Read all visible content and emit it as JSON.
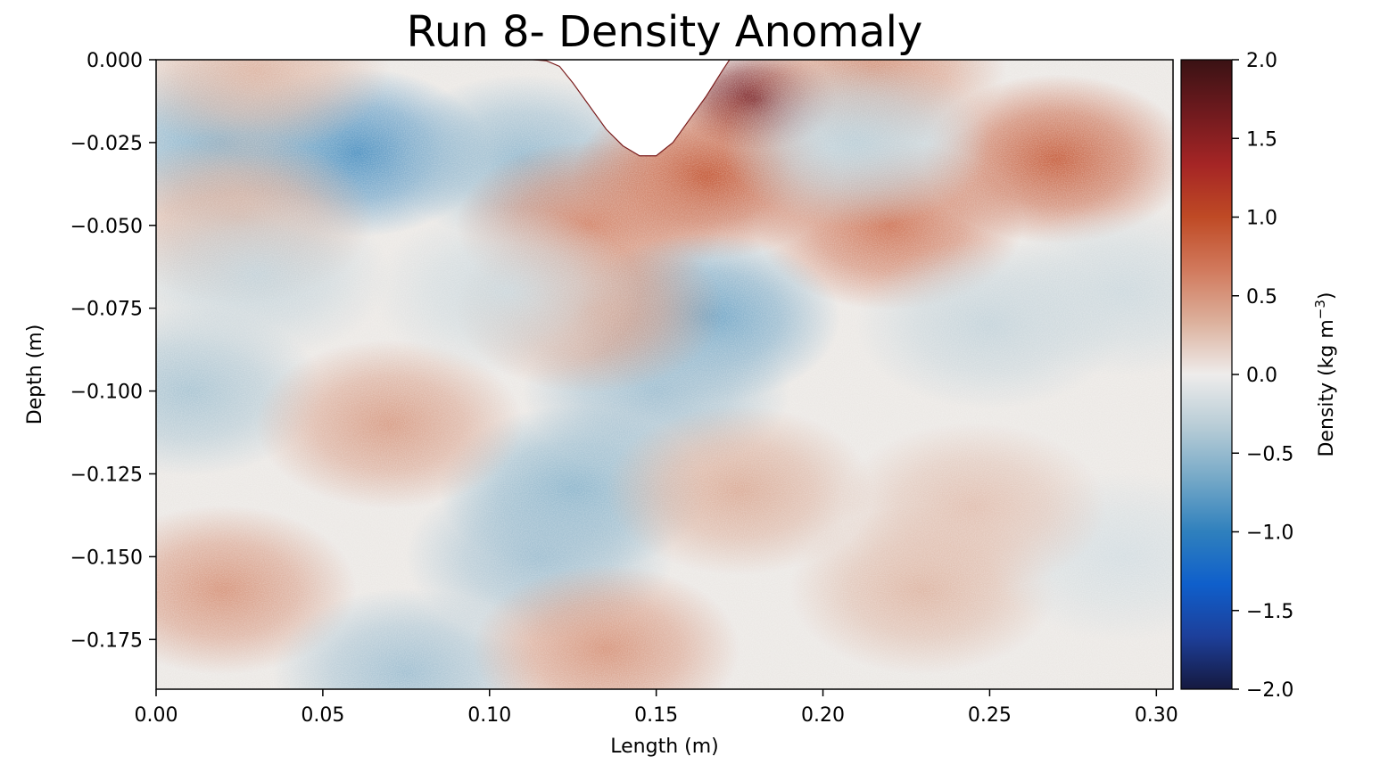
{
  "chart_data": {
    "type": "heatmap",
    "title": "Run 8- Density Anomaly",
    "xlabel": "Length (m)",
    "ylabel": "Depth (m)",
    "xlim": [
      0.0,
      0.305
    ],
    "ylim": [
      -0.19,
      0.0
    ],
    "x_ticks": [
      "0.00",
      "0.05",
      "0.10",
      "0.15",
      "0.20",
      "0.25",
      "0.30"
    ],
    "x_tick_values": [
      0.0,
      0.05,
      0.1,
      0.15,
      0.2,
      0.25,
      0.3
    ],
    "y_ticks": [
      "0.000",
      "−0.025",
      "−0.050",
      "−0.075",
      "−0.100",
      "−0.125",
      "−0.150",
      "−0.175"
    ],
    "y_tick_values": [
      0.0,
      -0.025,
      -0.05,
      -0.075,
      -0.1,
      -0.125,
      -0.15,
      -0.175
    ],
    "colorbar": {
      "label": "Density (kg m",
      "label_exponent": "−3",
      "label_close": ")",
      "range": [
        -2.0,
        2.0
      ],
      "ticks": [
        "2.0",
        "1.5",
        "1.0",
        "0.5",
        "0.0",
        "−0.5",
        "−1.0",
        "−1.5",
        "−2.0"
      ],
      "tick_values": [
        2.0,
        1.5,
        1.0,
        0.5,
        0.0,
        -0.5,
        -1.0,
        -1.5,
        -2.0
      ],
      "colormap": [
        "#15193f",
        "#1d3f9a",
        "#0f5fcb",
        "#2f80bd",
        "#74a8c7",
        "#b7ccd6",
        "#eeeceb",
        "#dcb09c",
        "#d1795c",
        "#bf4a25",
        "#a52525",
        "#6f1a1e",
        "#3a1214"
      ]
    },
    "field_features": [
      {
        "x": 0.06,
        "depth": -0.028,
        "value": -0.85
      },
      {
        "x": 0.02,
        "depth": -0.025,
        "value": -0.6
      },
      {
        "x": 0.11,
        "depth": -0.03,
        "value": -0.5
      },
      {
        "x": 0.18,
        "depth": -0.012,
        "value": 1.6
      },
      {
        "x": 0.165,
        "depth": -0.035,
        "value": 0.9
      },
      {
        "x": 0.13,
        "depth": -0.05,
        "value": 0.6
      },
      {
        "x": 0.22,
        "depth": -0.05,
        "value": 0.7
      },
      {
        "x": 0.27,
        "depth": -0.03,
        "value": 0.85
      },
      {
        "x": 0.215,
        "depth": -0.002,
        "value": 0.5
      },
      {
        "x": 0.03,
        "depth": -0.003,
        "value": 0.3
      },
      {
        "x": 0.025,
        "depth": -0.048,
        "value": 0.35
      },
      {
        "x": 0.21,
        "depth": -0.025,
        "value": -0.3
      },
      {
        "x": 0.165,
        "depth": -0.078,
        "value": -0.7
      },
      {
        "x": 0.15,
        "depth": -0.1,
        "value": -0.45
      },
      {
        "x": 0.125,
        "depth": -0.13,
        "value": -0.55
      },
      {
        "x": 0.115,
        "depth": -0.15,
        "value": -0.45
      },
      {
        "x": 0.01,
        "depth": -0.1,
        "value": -0.4
      },
      {
        "x": 0.03,
        "depth": -0.065,
        "value": -0.25
      },
      {
        "x": 0.07,
        "depth": -0.11,
        "value": 0.45
      },
      {
        "x": 0.13,
        "depth": -0.075,
        "value": 0.45
      },
      {
        "x": 0.02,
        "depth": -0.16,
        "value": 0.5
      },
      {
        "x": 0.075,
        "depth": -0.185,
        "value": -0.45
      },
      {
        "x": 0.135,
        "depth": -0.178,
        "value": 0.5
      },
      {
        "x": 0.175,
        "depth": -0.13,
        "value": 0.35
      },
      {
        "x": 0.23,
        "depth": -0.16,
        "value": 0.3
      },
      {
        "x": 0.25,
        "depth": -0.08,
        "value": -0.25
      },
      {
        "x": 0.29,
        "depth": -0.07,
        "value": -0.2
      },
      {
        "x": 0.29,
        "depth": -0.15,
        "value": -0.15
      },
      {
        "x": 0.245,
        "depth": -0.135,
        "value": 0.25
      },
      {
        "x": 0.105,
        "depth": -0.07,
        "value": -0.2
      }
    ],
    "obstacle_profile": {
      "x": [
        0.113,
        0.117,
        0.121,
        0.125,
        0.13,
        0.135,
        0.14,
        0.145,
        0.15,
        0.155,
        0.16,
        0.165,
        0.17,
        0.172
      ],
      "depth": [
        0.0,
        -0.0003,
        -0.002,
        -0.007,
        -0.014,
        -0.021,
        -0.026,
        -0.029,
        -0.029,
        -0.025,
        -0.018,
        -0.011,
        -0.003,
        0.0
      ]
    }
  }
}
